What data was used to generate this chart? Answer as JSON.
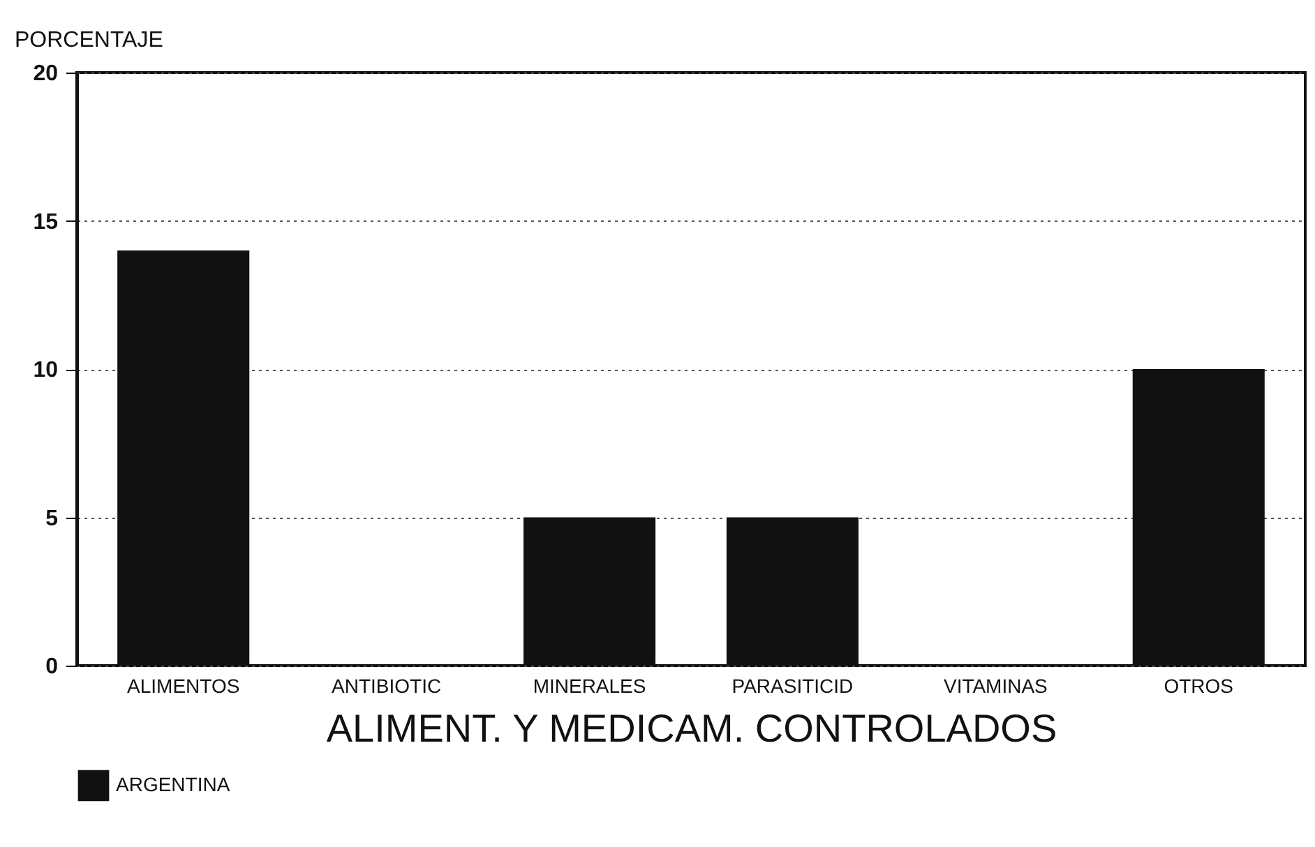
{
  "chart_data": {
    "type": "bar",
    "ylabel": "PORCENTAJE",
    "xlabel": "ALIMENT. Y MEDICAM. CONTROLADOS",
    "categories": [
      "ALIMENTOS",
      "ANTIBIOTIC",
      "MINERALES",
      "PARASITICID",
      "VITAMINAS",
      "OTROS"
    ],
    "series": [
      {
        "name": "ARGENTINA",
        "color": "#111111",
        "values": [
          14,
          0,
          5,
          5,
          0,
          10
        ]
      }
    ],
    "ylim": [
      0,
      20
    ],
    "yticks": [
      0,
      5,
      10,
      15,
      20
    ],
    "grid": "y",
    "legend": "bottom"
  }
}
